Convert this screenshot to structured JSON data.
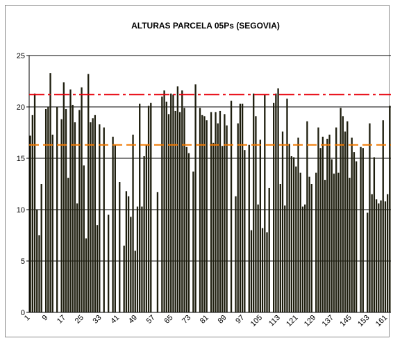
{
  "chart_data": {
    "type": "bar",
    "title": "ALTURAS PARCELA 05Ps (SEGOVIA)",
    "categories": [
      "1",
      null,
      null,
      null,
      null,
      null,
      null,
      null,
      "9",
      null,
      null,
      null,
      null,
      null,
      null,
      null,
      "17",
      null,
      null,
      null,
      null,
      null,
      null,
      null,
      "25",
      null,
      null,
      null,
      null,
      null,
      null,
      null,
      "33",
      null,
      null,
      null,
      null,
      null,
      null,
      null,
      "41",
      null,
      null,
      null,
      null,
      null,
      null,
      null,
      "49",
      null,
      null,
      null,
      null,
      null,
      null,
      null,
      "57",
      null,
      null,
      null,
      null,
      null,
      null,
      null,
      "65",
      null,
      null,
      null,
      null,
      null,
      null,
      null,
      "73",
      null,
      null,
      null,
      null,
      null,
      null,
      null,
      "81",
      null,
      null,
      null,
      null,
      null,
      null,
      null,
      "89",
      null,
      null,
      null,
      null,
      null,
      null,
      null,
      "97",
      null,
      null,
      null,
      null,
      null,
      null,
      null,
      "105",
      null,
      null,
      null,
      null,
      null,
      null,
      null,
      "113",
      null,
      null,
      null,
      null,
      null,
      null,
      null,
      "121",
      null,
      null,
      null,
      null,
      null,
      null,
      null,
      "129",
      null,
      null,
      null,
      null,
      null,
      null,
      null,
      "137",
      null,
      null,
      null,
      null,
      null,
      null,
      null,
      "145",
      null,
      null,
      null,
      null,
      null,
      null,
      null,
      "153",
      null,
      null,
      null,
      null,
      null,
      null,
      null,
      "161",
      null
    ],
    "values": [
      17.2,
      19.2,
      21.3,
      10,
      7.5,
      12.5,
      null,
      19.8,
      20,
      23.3,
      17.3,
      null,
      20,
      null,
      18.8,
      22.4,
      19.8,
      13.1,
      21.7,
      20.2,
      18.5,
      10.6,
      19.7,
      21.9,
      14.3,
      7.2,
      23.2,
      18.5,
      18.9,
      19.2,
      8.5,
      18.3,
      null,
      18,
      null,
      9.5,
      null,
      17.1,
      16.3,
      null,
      12.7,
      null,
      6.5,
      11.8,
      11.3,
      9.3,
      17.3,
      6,
      10.3,
      20.3,
      10.3,
      15.2,
      16.3,
      20.1,
      20.4,
      null,
      null,
      11.7,
      null,
      21,
      21.6,
      20.5,
      19.3,
      21.3,
      21.2,
      19.6,
      22,
      19.5,
      21.6,
      19.9,
      16.1,
      15.5,
      null,
      13.7,
      22.2,
      null,
      19.9,
      19.2,
      19.1,
      18.7,
      null,
      19.5,
      16.5,
      19.5,
      18.4,
      19.6,
      16.2,
      19.3,
      18.2,
      null,
      20.6,
      null,
      11.3,
      18.4,
      20.3,
      20.3,
      15.8,
      null,
      16.3,
      8,
      21.3,
      19.1,
      10.5,
      16.8,
      8.2,
      21.2,
      7.8,
      12.1,
      null,
      20.4,
      21.3,
      21.8,
      12.5,
      17.6,
      10.4,
      20.8,
      16.4,
      15.2,
      15.1,
      14.2,
      17,
      13.6,
      10.3,
      10.5,
      18.6,
      13.2,
      12.5,
      null,
      13.6,
      18,
      16,
      17.1,
      12.9,
      16.9,
      17.3,
      14.9,
      13.5,
      18,
      13.6,
      19.9,
      19.1,
      17.6,
      18.6,
      13.1,
      17,
      15.6,
      14.7,
      null,
      16.1,
      16,
      null,
      9.7,
      18.4,
      11.5,
      15.1,
      11,
      10.6,
      10.9,
      18.7,
      10.8,
      11.5,
      20.1
    ],
    "color": "#1e1e0e",
    "ylim": [
      0,
      25
    ],
    "yticks": [
      0,
      5,
      10,
      15,
      20,
      25
    ],
    "grid": true,
    "reference_lines": [
      {
        "value": 21.2,
        "color": "#e8000b",
        "dash": "22 5 4 5"
      },
      {
        "value": 16.3,
        "color": "#f07800",
        "dash": "14 6"
      }
    ]
  }
}
